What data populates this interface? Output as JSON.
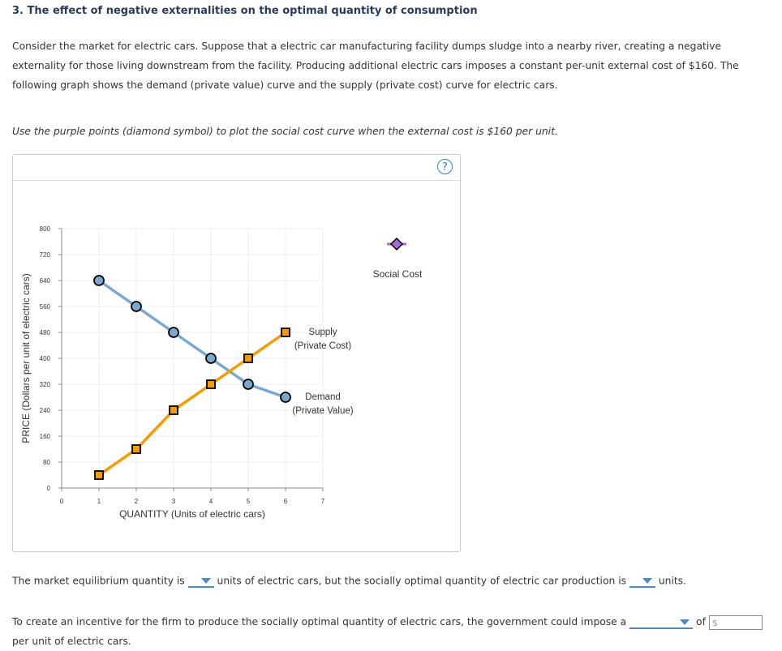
{
  "title": "3. The effect of negative externalities on the optimal quantity of consumption",
  "intro": "Consider the market for electric cars. Suppose that a electric car manufacturing facility dumps sludge into a nearby river, creating a negative externality for those living downstream from the facility. Producing additional electric cars imposes a constant per-unit external cost of $160. The following graph shows the demand (private value) curve and the supply (private cost) curve for electric cars.",
  "instruction": "Use the purple points (diamond symbol) to plot the social cost curve when the external cost is $160 per unit.",
  "help_label": "?",
  "chart_data": {
    "type": "line",
    "xlabel": "QUANTITY (Units of electric cars)",
    "ylabel": "PRICE (Dollars per unit of electric cars)",
    "xlim": [
      0,
      7
    ],
    "ylim": [
      0,
      800
    ],
    "xticks": [
      0,
      1,
      2,
      3,
      4,
      5,
      6,
      7
    ],
    "yticks": [
      0,
      80,
      160,
      240,
      320,
      400,
      480,
      560,
      640,
      720,
      800
    ],
    "grid": true,
    "series": [
      {
        "name": "Demand",
        "sublabel": "(Private Value)",
        "x": [
          1,
          2,
          3,
          4,
          5,
          6
        ],
        "y": [
          640,
          560,
          480,
          400,
          320,
          280
        ],
        "color": "#7ba7d0",
        "marker": "circle"
      },
      {
        "name": "Supply",
        "sublabel": "(Private Cost)",
        "x": [
          1,
          2,
          3,
          4,
          5,
          6
        ],
        "y": [
          40,
          120,
          240,
          320,
          400,
          480
        ],
        "color": "#f59b00",
        "marker": "square"
      }
    ],
    "palette": {
      "name": "Social Cost",
      "color": "#a070d0",
      "marker": "diamond"
    }
  },
  "q1": {
    "pre": "The market equilibrium quantity is",
    "mid": "units of electric cars, but the socially optimal quantity of electric car production is",
    "post": "units."
  },
  "q2": {
    "pre": "To create an incentive for the firm to produce the socially optimal quantity of electric cars, the government could impose a",
    "of": "of",
    "placeholder": "$",
    "post": "per unit of electric cars."
  }
}
